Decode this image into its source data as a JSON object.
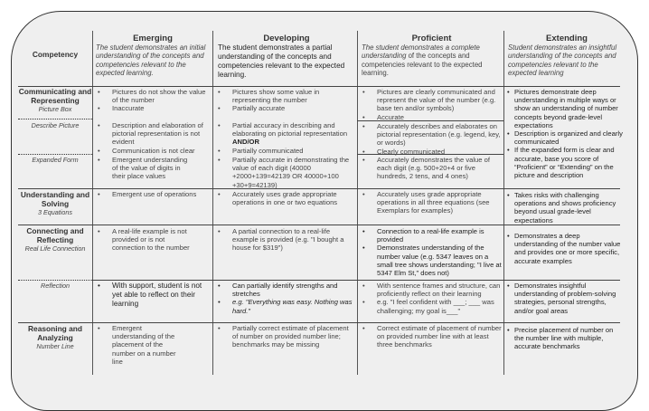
{
  "header": {
    "competency": "Competency",
    "levels": [
      {
        "title": "Emerging",
        "desc": "The student demonstrates an initial understanding of the concepts and competencies relevant to the expected learning."
      },
      {
        "title": "Developing",
        "desc": "The student demonstrates a partial understanding of the concepts and competencies relevant to the expected learning."
      },
      {
        "title": "Proficient",
        "desc_italic": "The student demonstrates a complete understanding",
        "desc_rest": " of the concepts and competencies relevant to the expected learning."
      },
      {
        "title": "Extending",
        "desc": "Student demonstrates an insightful understanding of the concepts and competencies relevant to the expected learning"
      }
    ]
  },
  "rows": {
    "comm": {
      "title": "Communicating and Representing",
      "sub1": "Picture Box",
      "sub2": "Describe Picture",
      "sub3": "Expanded Form",
      "pb": {
        "emerging": [
          "Pictures do not show the value of the number",
          "Inaccurate"
        ],
        "developing": [
          "Pictures show some value in representing the number",
          "Partially accurate"
        ],
        "proficient": [
          "Pictures are clearly communicated and represent the value of the number (e.g. base ten and/or symbols)",
          "Accurate"
        ]
      },
      "dp": {
        "emerging": [
          "Description and elaboration of pictorial representation is not evident",
          "Communication is not clear"
        ],
        "developing_1": "Partial accuracy in describing and elaborating on pictorial representation ",
        "developing_bold": "AND/OR",
        "developing_2": "Partially communicated",
        "proficient": [
          "Accurately describes and elaborates on pictorial representation (e.g. legend, key, or words)",
          "Clearly communicated"
        ]
      },
      "ef": {
        "emerging": [
          "Emergent understanding of the value of digits in their place values"
        ],
        "developing": [
          "Partially accurate in demonstrating the value of each digit (40000 +2000+139=42139 OR 40000+100 +30+9=42139)"
        ],
        "proficient": [
          "Accurately demonstrates the value of each digit (e.g. 500+20+4 or five hundreds, 2 tens, and 4 ones)"
        ]
      },
      "extending": [
        "Pictures demonstrate deep understanding in multiple ways or show an understanding of number concepts beyond grade-level expectations",
        "Description is organized and clearly communicated",
        "If the expanded form is clear and accurate, base you score of “Proficient” or “Extending” on the picture and description"
      ]
    },
    "solve": {
      "title": "Understanding and Solving",
      "sub": "3 Equations",
      "emerging": [
        "Emergent use of operations"
      ],
      "developing": [
        "Accurately uses grade appropriate operations in one or two equations"
      ],
      "proficient": [
        "Accurately uses grade appropriate operations in all three equations (see Exemplars for examples)"
      ],
      "extending": [
        "Takes risks with challenging operations and shows proficiency beyond usual grade-level expectations"
      ]
    },
    "connect": {
      "title": "Connecting and Reflecting",
      "sub": "Real Life Connection",
      "emerging": [
        "A real-life example is not provided or is not connection to the number"
      ],
      "developing": [
        "A partial connection to a real-life example is provided (e.g. \"I bought a house for $319\")"
      ],
      "proficient": [
        "Connection to a real-life example is provided",
        "Demonstrates understanding of the number value (e.g. 5347 leaves on a small tree shows understanding; \"I live at 5347 Elm St,\" does not)"
      ],
      "extending": [
        "Demonstrates a deep understanding of the number value and provides one or more specific, accurate examples"
      ]
    },
    "reflect": {
      "sub": "Reflection",
      "emerging": [
        "With support, student is not yet able to reflect on their learning"
      ],
      "developing": [
        "Can partially identify strengths and stretches",
        "e.g. \"Everything was easy. Nothing was hard.\""
      ],
      "proficient": [
        "With sentence frames and structure, can proficiently reflect on their learning",
        "e.g. \"I feel confident with ___; ___ was challenging; my goal is___\""
      ],
      "extending": [
        "Demonstrates insightful understanding of problem-solving strategies, personal strengths, and/or goal areas"
      ]
    },
    "reason": {
      "title": "Reasoning and Analyzing",
      "sub": "Number Line",
      "emerging": [
        "Emergent understanding of the placement of the number on a number line"
      ],
      "developing": [
        "Partially correct estimate of placement of number on provided number line; benchmarks may be missing"
      ],
      "proficient": [
        "Correct estimate of placement of number on provided number line with at least three benchmarks"
      ],
      "extending": [
        "Precise placement of number on the number line with multiple, accurate benchmarks"
      ]
    }
  }
}
